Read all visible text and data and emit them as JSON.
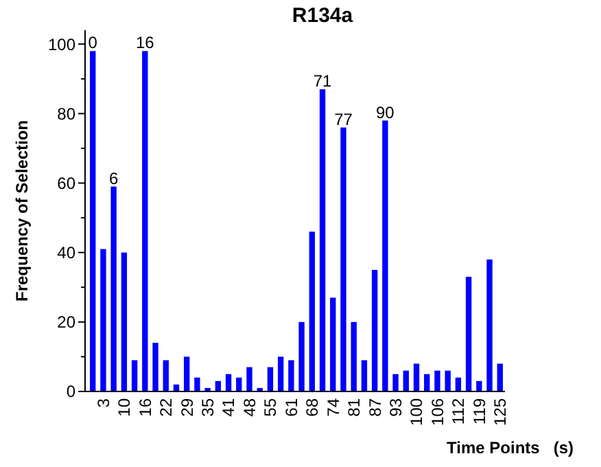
{
  "chart_data": {
    "type": "bar",
    "title": "R134a",
    "xlabel": "Time Points   (s)",
    "ylabel": "Frequency of Selection",
    "categories": [
      null,
      "3",
      null,
      "10",
      null,
      "16",
      null,
      "22",
      null,
      "29",
      null,
      "35",
      null,
      "41",
      null,
      "48",
      null,
      "55",
      null,
      "61",
      null,
      "68",
      null,
      "74",
      null,
      "81",
      null,
      "87",
      null,
      "93",
      null,
      "100",
      null,
      "106",
      null,
      "112",
      null,
      "119",
      null,
      "125"
    ],
    "values": [
      98,
      41,
      59,
      40,
      9,
      98,
      14,
      9,
      2,
      10,
      4,
      1,
      3,
      5,
      4,
      7,
      1,
      7,
      10,
      9,
      20,
      46,
      87,
      27,
      76,
      20,
      9,
      35,
      78,
      5,
      6,
      8,
      5,
      6,
      6,
      4,
      33,
      3,
      38,
      8
    ],
    "annotations": [
      {
        "text": "0",
        "y": 98
      },
      {
        "text": "6",
        "y": 59
      },
      {
        "text": "16",
        "y": 98
      },
      {
        "text": "71",
        "y": 87
      },
      {
        "text": "77",
        "y": 76
      },
      {
        "text": "90",
        "y": 78
      }
    ],
    "color": "#0000ff",
    "ylim": [
      0,
      104
    ],
    "yticks": [
      0,
      {
        "value": 10,
        "label": null
      },
      20,
      {
        "value": 30,
        "label": null
      },
      40,
      {
        "value": 50,
        "label": null
      },
      60,
      {
        "value": 70,
        "label": null
      },
      80,
      {
        "value": 90,
        "label": null
      },
      100
    ],
    "grid": false
  }
}
